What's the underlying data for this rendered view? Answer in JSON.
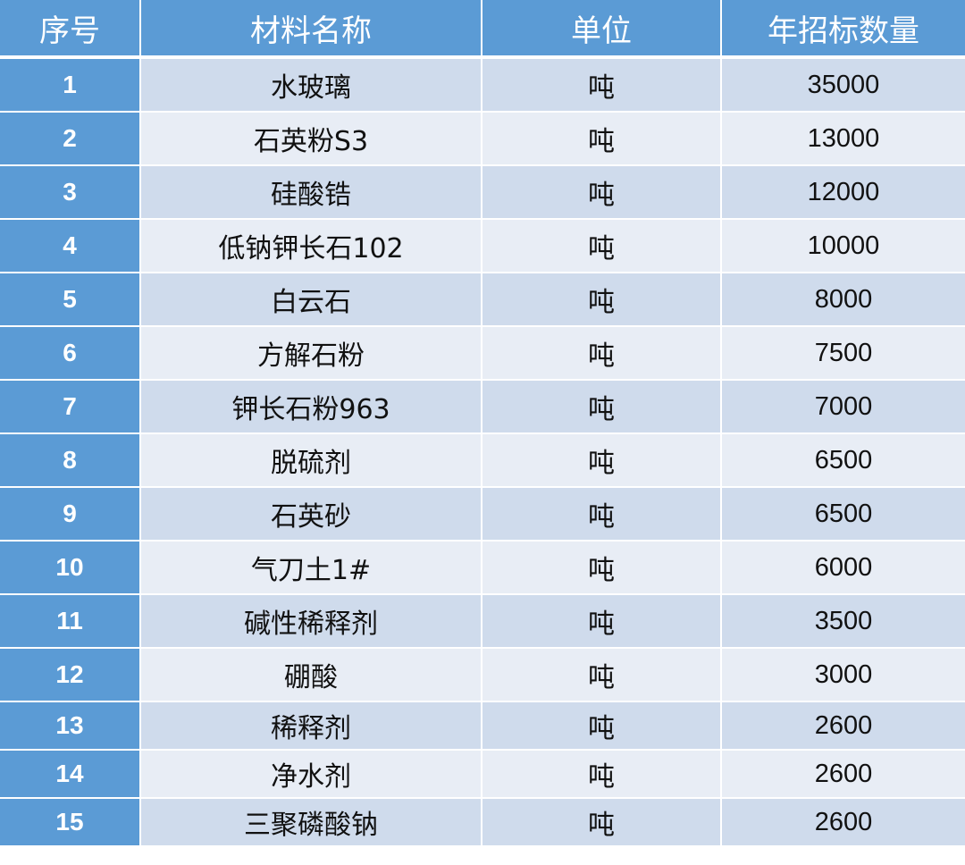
{
  "headers": {
    "index": "序号",
    "name": "材料名称",
    "unit": "单位",
    "quantity": "年招标数量"
  },
  "rows": [
    {
      "index": "1",
      "name": "水玻璃",
      "unit": "吨",
      "quantity": "35000"
    },
    {
      "index": "2",
      "name": "石英粉S3",
      "unit": "吨",
      "quantity": "13000"
    },
    {
      "index": "3",
      "name": "硅酸锆",
      "unit": "吨",
      "quantity": "12000"
    },
    {
      "index": "4",
      "name": "低钠钾长石102",
      "unit": "吨",
      "quantity": "10000"
    },
    {
      "index": "5",
      "name": "白云石",
      "unit": "吨",
      "quantity": "8000"
    },
    {
      "index": "6",
      "name": "方解石粉",
      "unit": "吨",
      "quantity": "7500"
    },
    {
      "index": "7",
      "name": "钾长石粉963",
      "unit": "吨",
      "quantity": "7000"
    },
    {
      "index": "8",
      "name": "脱硫剂",
      "unit": "吨",
      "quantity": "6500"
    },
    {
      "index": "9",
      "name": "石英砂",
      "unit": "吨",
      "quantity": "6500"
    },
    {
      "index": "10",
      "name": "气刀土1#",
      "unit": "吨",
      "quantity": "6000"
    },
    {
      "index": "11",
      "name": "碱性稀释剂",
      "unit": "吨",
      "quantity": "3500"
    },
    {
      "index": "12",
      "name": "硼酸",
      "unit": "吨",
      "quantity": "3000"
    },
    {
      "index": "13",
      "name": "稀释剂",
      "unit": "吨",
      "quantity": "2600"
    },
    {
      "index": "14",
      "name": "净水剂",
      "unit": "吨",
      "quantity": "2600"
    },
    {
      "index": "15",
      "name": "三聚磷酸钠",
      "unit": "吨",
      "quantity": "2600"
    }
  ],
  "colors": {
    "header_bg": "#5b9bd5",
    "index_col_bg": "#5b9bd5",
    "row_odd_bg": "#cfdbec",
    "row_even_bg": "#e8edf5",
    "header_text": "#ffffff"
  }
}
